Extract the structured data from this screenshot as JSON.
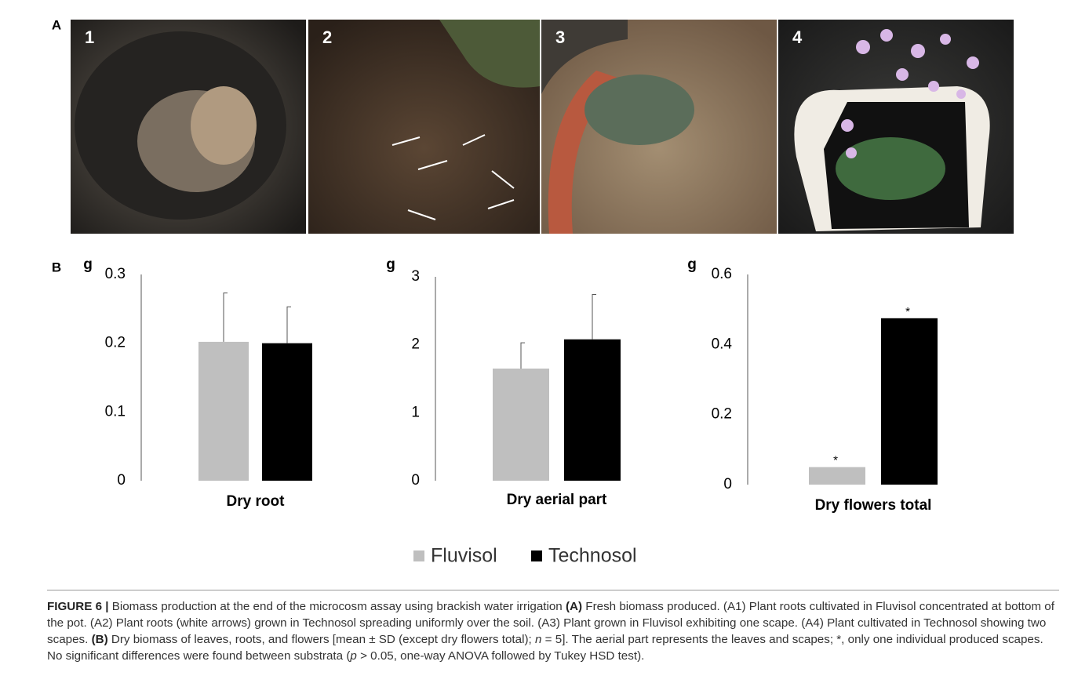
{
  "figure": {
    "panel_a_label": "A",
    "panel_b_label": "B",
    "photo_labels": [
      "1",
      "2",
      "3",
      "4"
    ],
    "legend": {
      "entries": [
        {
          "name": "Fluvisol",
          "color": "#bfbfbf"
        },
        {
          "name": "Technosol",
          "color": "#000000"
        }
      ]
    },
    "caption": {
      "segments": [
        {
          "text": "FIGURE 6 |",
          "style": "bold"
        },
        {
          "text": " Biomass production at the end of the microcosm assay using brackish water irrigation "
        },
        {
          "text": "(A)",
          "style": "bold"
        },
        {
          "text": " Fresh biomass produced. (A1) Plant roots cultivated in Fluvisol concentrated at bottom of the pot. (A2) Plant roots (white arrows) grown in Technosol spreading uniformly over the soil. (A3) Plant grown in Fluvisol exhibiting one scape. (A4) Plant cultivated in Technosol showing two scapes. "
        },
        {
          "text": "(B)",
          "style": "bold"
        },
        {
          "text": " Dry biomass of leaves, roots, and flowers [mean ± SD (except dry flowers total); "
        },
        {
          "text": "n",
          "style": "italic"
        },
        {
          "text": " = 5]. The aerial part represents the leaves and scapes; *, only one individual produced scapes. No significant differences were found between substrata ("
        },
        {
          "text": "p",
          "style": "italic"
        },
        {
          "text": " > 0.05, one-way ANOVA followed by Tukey HSD test)."
        }
      ]
    }
  },
  "chart_data": [
    {
      "type": "bar",
      "y_label": "g",
      "categories": [
        "Dry root"
      ],
      "ylim": [
        0,
        0.3
      ],
      "yticks": [
        0,
        0.1,
        0.2,
        0.3
      ],
      "series": [
        {
          "values": [
            0.202
          ],
          "errors": [
            0.071
          ]
        },
        {
          "values": [
            0.2
          ],
          "errors": [
            0.053
          ]
        }
      ]
    },
    {
      "type": "bar",
      "y_label": "g",
      "categories": [
        "Dry aerial part"
      ],
      "ylim": [
        0,
        3
      ],
      "yticks": [
        0,
        1,
        2,
        3
      ],
      "series": [
        {
          "values": [
            1.65
          ],
          "errors": [
            0.38
          ]
        },
        {
          "values": [
            2.08
          ],
          "errors": [
            0.66
          ]
        }
      ]
    },
    {
      "type": "bar",
      "y_label": "g",
      "categories": [
        "Dry flowers total"
      ],
      "ylim": [
        0,
        0.6
      ],
      "yticks": [
        0,
        0.2,
        0.4,
        0.6
      ],
      "series": [
        {
          "values": [
            0.05
          ],
          "annotations": [
            "*"
          ]
        },
        {
          "values": [
            0.475
          ],
          "annotations": [
            "*"
          ]
        }
      ]
    }
  ]
}
